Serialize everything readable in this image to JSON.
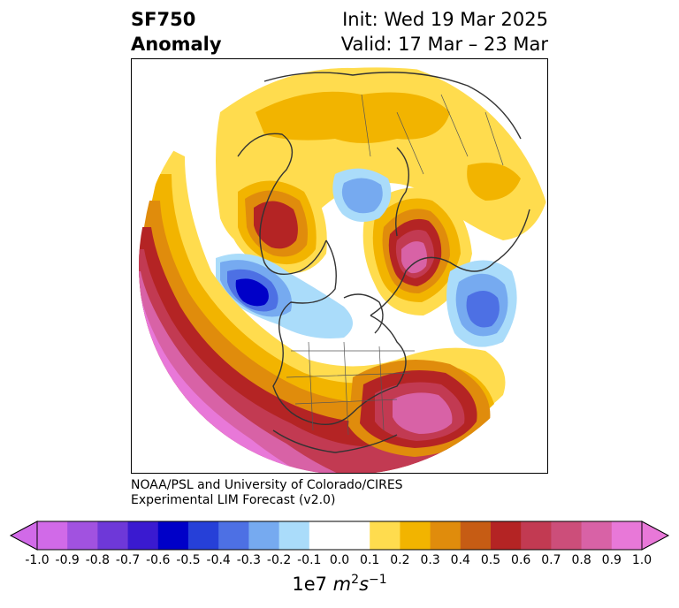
{
  "title": {
    "variable": "SF750",
    "subtitle": "Anomaly",
    "init": "Init: Wed 19 Mar 2025",
    "valid": "Valid: 17 Mar – 23 Mar"
  },
  "credit": {
    "line1": "NOAA/PSL and University of Colorado/CIRES",
    "line2": "Experimental LIM Forecast (v2.0)"
  },
  "colorbar": {
    "ticks": [
      "-1.0",
      "-0.9",
      "-0.8",
      "-0.7",
      "-0.6",
      "-0.5",
      "-0.4",
      "-0.3",
      "-0.2",
      "-0.1",
      "0.0",
      "0.1",
      "0.2",
      "0.3",
      "0.4",
      "0.5",
      "0.6",
      "0.7",
      "0.8",
      "0.9",
      "1.0"
    ],
    "colors": [
      "#d16ae8",
      "#a152e0",
      "#6e38d8",
      "#3a1ad0",
      "#0000c8",
      "#2640d8",
      "#4d70e4",
      "#76aaf0",
      "#aadcfa",
      "#ffffff",
      "#ffffff",
      "#ffdc4e",
      "#f2b400",
      "#e08c0c",
      "#c65c14",
      "#b42424",
      "#c23a52",
      "#cc4e7a",
      "#d862a6",
      "#e878d8"
    ],
    "unit_base": "1e7 ",
    "unit_m": "m",
    "unit_m_exp": "2",
    "unit_s": "s",
    "unit_s_exp": "−1"
  },
  "map": {
    "projection": "polar-stereographic-north",
    "features": [
      "continents",
      "country-borders",
      "us-states"
    ],
    "colors": {
      "positive_light": "#ffdc4e",
      "positive_mid": "#f2b400",
      "positive_orange": "#e08c0c",
      "positive_red": "#b42424",
      "positive_max": "#e878d8",
      "negative_light": "#aadcfa",
      "negative_mid": "#76aaf0",
      "negative_dark": "#0000c8"
    }
  }
}
